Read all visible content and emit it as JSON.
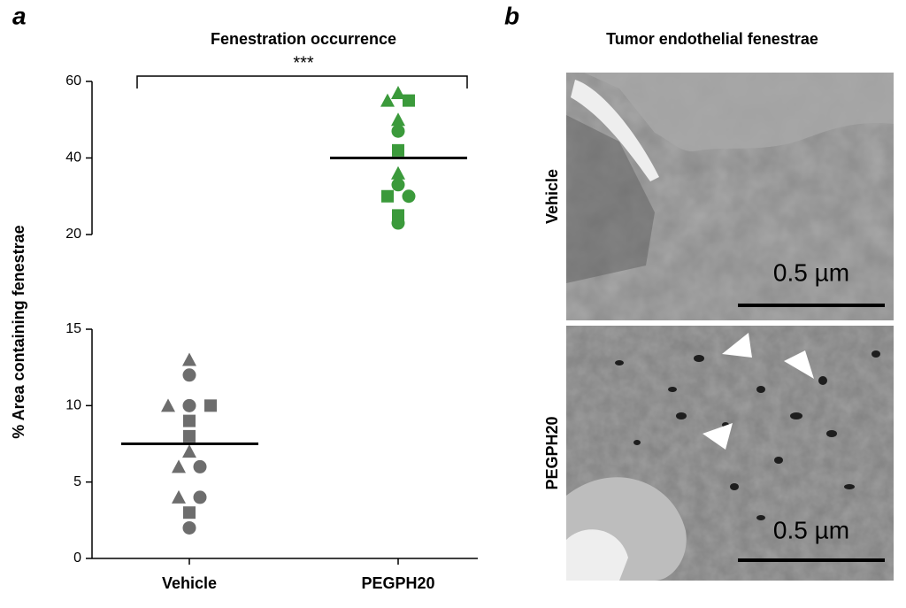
{
  "panel_labels": [
    "a",
    "b"
  ],
  "chart_data": {
    "type": "scatter",
    "title": "Fenestration occurrence",
    "ylabel": "% Area containing fenestrae",
    "categories": [
      "Vehicle",
      "PEGPH20"
    ],
    "significance": "***",
    "y_segments": [
      {
        "ylim": [
          0,
          15
        ],
        "yticks": [
          0,
          5,
          10,
          15
        ]
      },
      {
        "ylim": [
          20,
          60
        ],
        "yticks": [
          20,
          40,
          60
        ]
      }
    ],
    "series": [
      {
        "color": "#6d6d6d",
        "mean": 7.5,
        "values": [
          13,
          12,
          10,
          10,
          10,
          9,
          8,
          7,
          6,
          6,
          4,
          4,
          3,
          2
        ],
        "markers": [
          "triangle",
          "circle",
          "triangle",
          "circle",
          "square",
          "square",
          "square",
          "triangle",
          "triangle",
          "circle",
          "triangle",
          "circle",
          "square",
          "circle"
        ]
      },
      {
        "color": "#3b9a3b",
        "mean": 40,
        "values": [
          57,
          55,
          55,
          50,
          47,
          42,
          36,
          33,
          30,
          30,
          25,
          23
        ],
        "markers": [
          "triangle",
          "triangle",
          "square",
          "triangle",
          "circle",
          "square",
          "triangle",
          "circle",
          "square",
          "circle",
          "square",
          "circle"
        ]
      }
    ]
  },
  "micrographs": {
    "title": "Tumor endothelial fenestrae",
    "rows": [
      {
        "label": "Vehicle",
        "scale_bar": "0.5 µm"
      },
      {
        "label": "PEGPH20",
        "scale_bar": "0.5 µm"
      }
    ]
  }
}
